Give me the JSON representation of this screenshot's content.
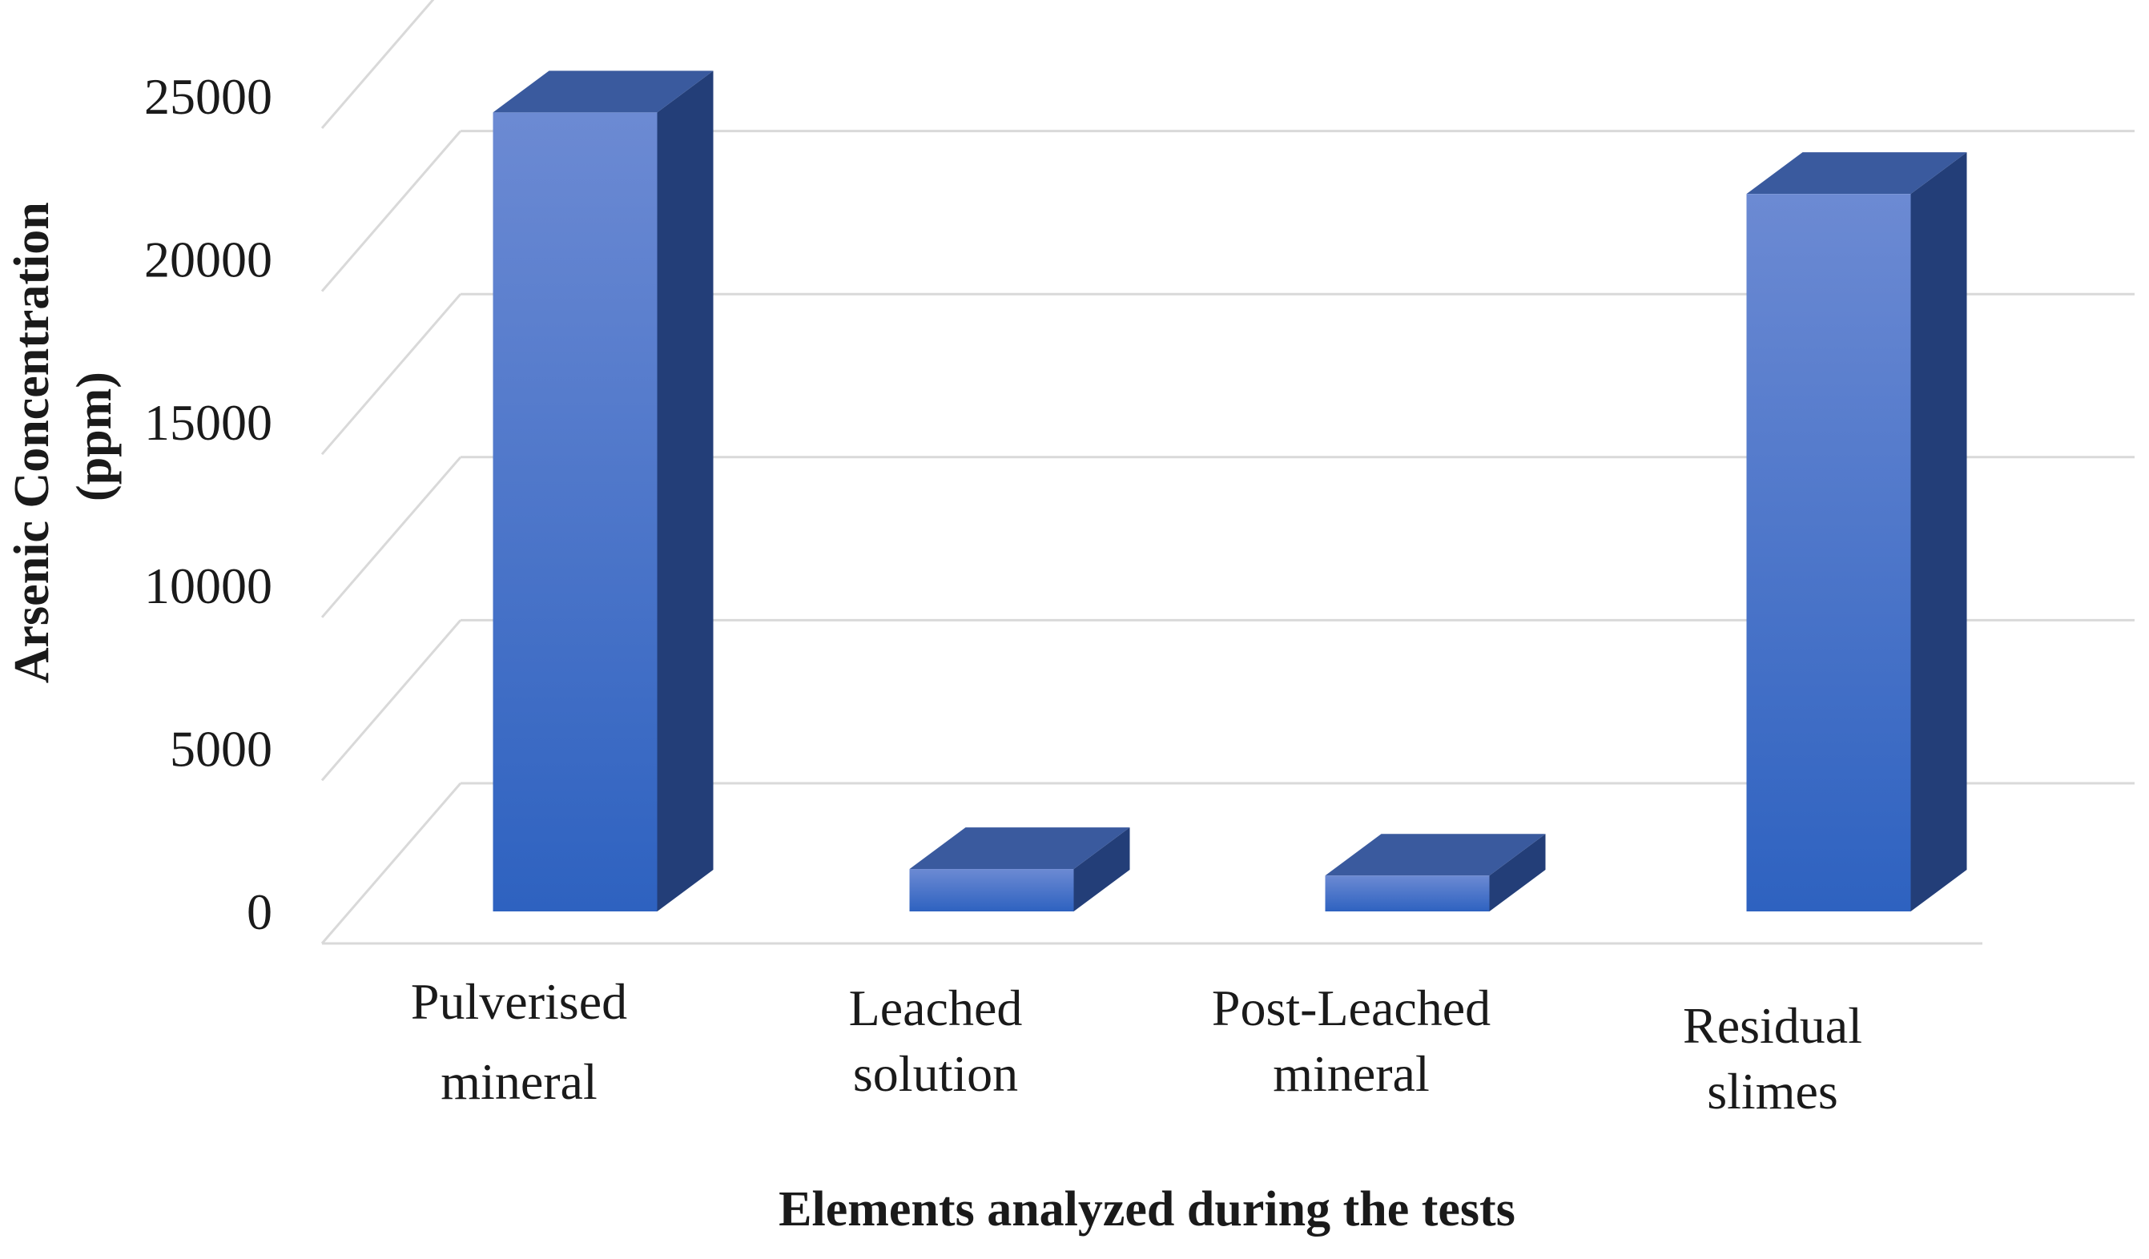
{
  "chart_data": {
    "type": "bar",
    "title": "",
    "xlabel": "Elements analyzed during the tests",
    "ylabel_lines": [
      "Arsenic Concentration",
      "(ppm)"
    ],
    "categories": [
      [
        "Pulverised",
        "mineral"
      ],
      [
        "Leached",
        "solution"
      ],
      [
        "Post-Leached",
        "mineral"
      ],
      [
        "Residual",
        "slimes"
      ]
    ],
    "values": [
      24500,
      1300,
      1100,
      22000
    ],
    "y_ticks": [
      "0",
      "5000",
      "10000",
      "15000",
      "20000",
      "25000"
    ],
    "ylim": [
      0,
      27500
    ],
    "grid": true,
    "legend": "none",
    "style": "3d-column",
    "colors": {
      "bar_front_top": "#6c8ad3",
      "bar_front_bottom": "#2e62c0",
      "bar_top": "#3a5a9e",
      "bar_side": "#233e78",
      "grid": "#d9d9d9"
    }
  }
}
